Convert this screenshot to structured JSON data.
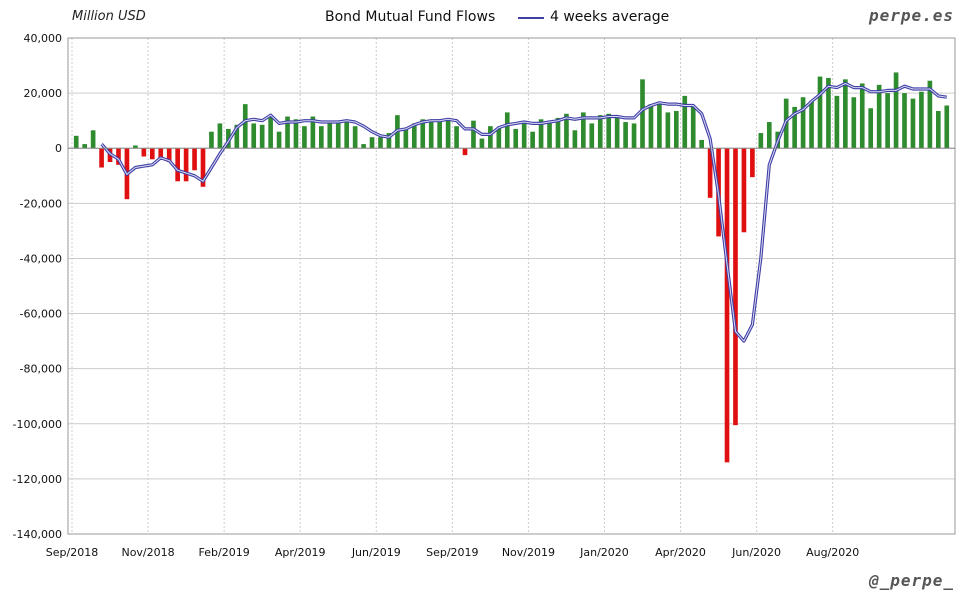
{
  "header": {
    "unit_label": "Million USD",
    "title": "Bond Mutual Fund Flows",
    "legend_label": "4 weeks average",
    "brand": "perpe.es"
  },
  "footer": {
    "handle": "@_perpe_"
  },
  "colors": {
    "positive": "#2e8b2e",
    "negative": "#e01010",
    "average": "#3f3fa6",
    "grid": "#cccccc"
  },
  "chart_data": {
    "type": "bar",
    "title": "Bond Mutual Fund Flows",
    "ylabel": "Million USD",
    "ylim": [
      -140000,
      40000
    ],
    "yticks": [
      40000,
      20000,
      0,
      -20000,
      -40000,
      -60000,
      -80000,
      -100000,
      -120000,
      -140000
    ],
    "ytick_labels": [
      "40,000",
      "20,000",
      "0",
      "-20,000",
      "-40,000",
      "-60,000",
      "-80,000",
      "-100,000",
      "-120,000",
      "-140,000"
    ],
    "xtick_labels": [
      "Sep/2018",
      "Nov/2018",
      "Feb/2019",
      "Apr/2019",
      "Jun/2019",
      "Sep/2019",
      "Nov/2019",
      "Jan/2020",
      "Apr/2020",
      "Jun/2020",
      "Aug/2020"
    ],
    "xtick_positions": [
      0,
      9,
      18,
      27,
      36,
      45,
      54,
      63,
      72,
      81,
      90
    ],
    "grid": true,
    "series": [
      {
        "name": "Bond Mutual Fund Flows",
        "type": "bar",
        "values": [
          4500,
          1500,
          6500,
          -7000,
          -5000,
          -6000,
          -18500,
          1000,
          -3000,
          -4000,
          -4000,
          -5000,
          -12000,
          -12000,
          -8000,
          -14000,
          6000,
          9000,
          7000,
          8500,
          16000,
          9000,
          8500,
          12000,
          6000,
          11500,
          10500,
          8000,
          11500,
          8000,
          10000,
          10000,
          10000,
          8000,
          1500,
          4000,
          4000,
          5500,
          12000,
          7000,
          9000,
          10500,
          9500,
          10500,
          10500,
          8000,
          -2500,
          10000,
          3500,
          8000,
          7500,
          13000,
          7000,
          9000,
          6000,
          10500,
          10000,
          11000,
          12500,
          6500,
          13000,
          9000,
          12000,
          12500,
          11000,
          9500,
          9000,
          25000,
          16000,
          16000,
          13000,
          13500,
          19000,
          15500,
          3000,
          -18000,
          -32000,
          -114000,
          -100500,
          -30500,
          -10500,
          5500,
          9500,
          6000,
          18000,
          15000,
          18500,
          17000,
          26000,
          25500,
          19000,
          25000,
          18500,
          23500,
          14500,
          23000,
          20000,
          27500,
          20000,
          18000,
          20500,
          24500,
          13500,
          15500
        ]
      },
      {
        "name": "4 weeks average",
        "type": "line",
        "values": [
          null,
          null,
          null,
          1500,
          -2000,
          -4000,
          -9500,
          -7000,
          -6500,
          -6000,
          -3500,
          -4500,
          -8000,
          -9000,
          -10000,
          -12000,
          -7000,
          -2000,
          2500,
          7500,
          10000,
          10500,
          10000,
          12000,
          9000,
          9500,
          9500,
          10000,
          10000,
          9500,
          9500,
          9500,
          10000,
          9500,
          8000,
          6000,
          4500,
          4000,
          6500,
          7000,
          8500,
          9500,
          10000,
          10000,
          10500,
          10000,
          7000,
          7000,
          5000,
          5000,
          7500,
          8500,
          9000,
          9500,
          9000,
          9000,
          9500,
          10000,
          11000,
          10500,
          11000,
          11000,
          11000,
          11500,
          11500,
          11000,
          11000,
          14000,
          15500,
          16500,
          16000,
          16000,
          15500,
          15500,
          12500,
          3500,
          -17000,
          -42000,
          -66500,
          -70000,
          -64000,
          -40000,
          -6000,
          2500,
          10000,
          12500,
          14000,
          17000,
          19500,
          22500,
          22000,
          23500,
          22000,
          22000,
          20500,
          20500,
          21000,
          21000,
          22500,
          21500,
          21500,
          21500,
          19000,
          18500
        ]
      }
    ]
  }
}
